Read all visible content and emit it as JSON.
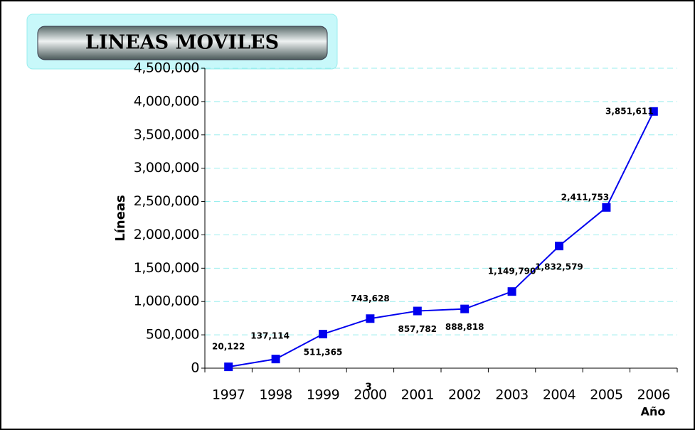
{
  "chart_data": {
    "type": "line",
    "title": "LINEAS MOVILES",
    "y_label": "Líneas",
    "x_label": "Año",
    "annotation": "3",
    "categories": [
      "1997",
      "1998",
      "1999",
      "2000",
      "2001",
      "2002",
      "2003",
      "2004",
      "2005",
      "2006"
    ],
    "series": [
      {
        "name": "Líneas",
        "color": "#0000ee",
        "values": [
          20122,
          137114,
          511365,
          743628,
          857782,
          888818,
          1149790,
          1832579,
          2411753,
          3851611
        ],
        "value_labels": [
          "20,122",
          "137,114",
          "511,365",
          "743,628",
          "857,782",
          "888,818",
          "1,149,790",
          "1,832,579",
          "2,411,753",
          "3,851,611"
        ]
      }
    ],
    "ylim": [
      0,
      4500000
    ],
    "yticks": [
      0,
      {
        "value": 500000,
        "label": "500,000"
      },
      {
        "value": 1000000,
        "label": "1,000,000"
      },
      {
        "value": 1500000,
        "label": "1,500,000"
      },
      {
        "value": 2000000,
        "label": "2,000,000"
      },
      {
        "value": 2500000,
        "label": "2,500,000"
      },
      {
        "value": 3000000,
        "label": "3,000,000"
      },
      {
        "value": 3500000,
        "label": "3,500,000"
      },
      {
        "value": 4000000,
        "label": "4,000,000"
      },
      {
        "value": 4500000,
        "label": "4,500,000"
      }
    ],
    "grid": true
  }
}
